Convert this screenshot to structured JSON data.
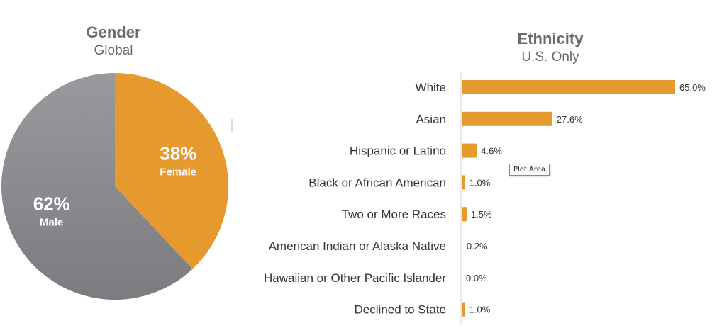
{
  "chart_data": [
    {
      "type": "pie",
      "title": "Gender",
      "subtitle": "Global",
      "slices": [
        {
          "label": "Female",
          "value": 38,
          "display": "38%",
          "color": "#E69A2E"
        },
        {
          "label": "Male",
          "value": 62,
          "display": "62%",
          "color": "#8C8C90"
        }
      ]
    },
    {
      "type": "bar",
      "orientation": "horizontal",
      "title": "Ethnicity",
      "subtitle": "U.S. Only",
      "color": "#E69A2E",
      "xlim": [
        0,
        65
      ],
      "categories": [
        "White",
        "Asian",
        "Hispanic or Latino",
        "Black or African American",
        "Two or More Races",
        "American Indian or Alaska Native",
        "Hawaiian or Other Pacific Islander",
        "Declined to State"
      ],
      "values": [
        65.0,
        27.6,
        4.6,
        1.0,
        1.5,
        0.2,
        0.0,
        1.0
      ],
      "value_labels": [
        "65.0%",
        "27.6%",
        "4.6%",
        "1.0%",
        "1.5%",
        "0.2%",
        "0.0%",
        "1.0%"
      ]
    }
  ],
  "tooltip": {
    "text": "Plot Area"
  }
}
